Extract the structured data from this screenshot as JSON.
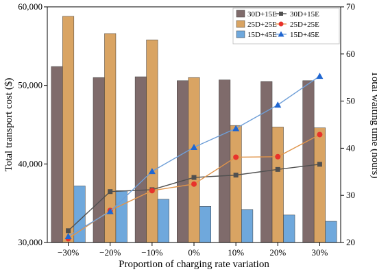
{
  "chart_data": {
    "type": "bar",
    "categories": [
      "−30%",
      "−20%",
      "−10%",
      "0%",
      "10%",
      "20%",
      "30%"
    ],
    "xlabel": "Proportion of charging rate variation",
    "ylabel_left": "Total transport cost ($)",
    "ylabel_right": "Total waiting time (hours)",
    "ylim_left": [
      30000,
      60000
    ],
    "yticks_left": [
      "30,000",
      "40,000",
      "50,000",
      "60,000"
    ],
    "ylim_right": [
      20,
      70
    ],
    "yticks_right": [
      "20",
      "30",
      "40",
      "50",
      "60",
      "70"
    ],
    "bar_series": [
      {
        "name": "30D+15E",
        "color": "#7f6b6b",
        "values": [
          52400,
          51000,
          51100,
          50600,
          50700,
          50500,
          50600
        ]
      },
      {
        "name": "25D+25E",
        "color": "#d9a463",
        "values": [
          58800,
          56600,
          55800,
          51000,
          44900,
          44700,
          44600
        ]
      },
      {
        "name": "15D+45E",
        "color": "#6fa8dc",
        "values": [
          37200,
          36600,
          35500,
          34600,
          34200,
          33500,
          32700
        ]
      }
    ],
    "line_series": [
      {
        "name": "30D+15E",
        "color": "#505050",
        "marker": "square",
        "values": [
          22.5,
          30.8,
          31.2,
          33.8,
          34.3,
          35.5,
          36.6
        ]
      },
      {
        "name": "25D+25E",
        "color": "#e0944a",
        "marker_color": "#e8322b",
        "marker": "circle",
        "values": [
          20.8,
          26.8,
          31.0,
          32.4,
          38.1,
          38.2,
          42.9
        ]
      },
      {
        "name": "15D+45E",
        "color": "#6f9fd8",
        "marker_color": "#1f66d1",
        "marker": "triangle",
        "values": [
          21.3,
          26.6,
          35.1,
          40.2,
          44.2,
          49.2,
          55.3
        ]
      }
    ],
    "legend_position": "top-right",
    "legend": [
      {
        "bar": "30D+15E",
        "line": "30D+15E"
      },
      {
        "bar": "25D+25E",
        "line": "25D+25E"
      },
      {
        "bar": "15D+45E",
        "line": "15D+45E"
      }
    ]
  }
}
